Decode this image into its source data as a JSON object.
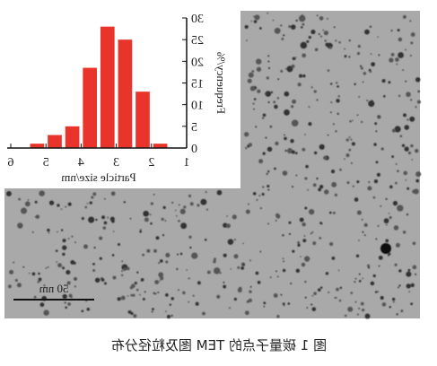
{
  "chart_data": {
    "type": "bar",
    "x": [
      1.75,
      2.25,
      2.75,
      3.25,
      3.75,
      4.25,
      4.75,
      5.25
    ],
    "values": [
      1,
      13,
      25,
      28,
      18.5,
      5,
      3,
      1
    ],
    "color": "#e8342a",
    "xlim": [
      1,
      6
    ],
    "xticks": [
      1,
      2,
      3,
      4,
      5,
      6
    ],
    "ylim": [
      0,
      30
    ],
    "yticks": [
      0,
      5,
      10,
      15,
      20,
      25,
      30
    ],
    "xlabel": "Particle size/nm",
    "ylabel": "Frequency/%"
  },
  "scale_bar_label": "50 nm",
  "caption": "图 1  碳量子点的 TEM 图及粒径分布"
}
